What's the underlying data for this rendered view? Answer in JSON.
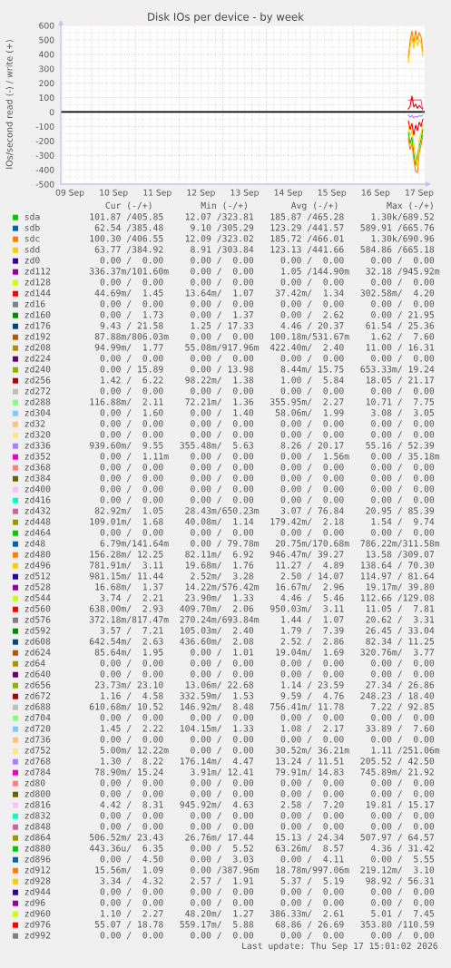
{
  "chart_data": {
    "type": "line",
    "title": "Disk IOs per device - by week",
    "ylabel": "IOs/second read (-) / write (+)",
    "x": [
      "2026-09-17T06:00",
      "2026-09-17T07:00",
      "2026-09-17T08:00",
      "2026-09-17T09:00",
      "2026-09-17T10:00",
      "2026-09-17T11:00",
      "2026-09-17T12:00",
      "2026-09-17T13:00",
      "2026-09-17T14:00"
    ],
    "xlim": [
      "2026-09-09T07:00",
      "2026-09-17T15:00"
    ],
    "xticks": [
      {
        "value": "2026-09-09T12:00",
        "label": "09 Sep"
      },
      {
        "value": "2026-09-10",
        "label": null
      },
      {
        "value": "2026-09-10T12:00",
        "label": "10 Sep"
      },
      {
        "value": "2026-09-11",
        "label": null
      },
      {
        "value": "2026-09-11T12:00",
        "label": "11 Sep"
      },
      {
        "value": "2026-09-12",
        "label": null
      },
      {
        "value": "2026-09-12T12:00",
        "label": "12 Sep"
      },
      {
        "value": "2026-09-13",
        "label": null
      },
      {
        "value": "2026-09-13T12:00",
        "label": "13 Sep"
      },
      {
        "value": "2026-09-14",
        "label": null
      },
      {
        "value": "2026-09-14T12:00",
        "label": "14 Sep"
      },
      {
        "value": "2026-09-15",
        "label": null
      },
      {
        "value": "2026-09-15T12:00",
        "label": "15 Sep"
      },
      {
        "value": "2026-09-16",
        "label": null
      },
      {
        "value": "2026-09-16T12:00",
        "label": "16 Sep"
      },
      {
        "value": "2026-09-17",
        "label": null
      },
      {
        "value": "2026-09-17T12:00",
        "label": "17 Sep"
      }
    ],
    "ylim": [
      -500,
      600
    ],
    "yticks": [
      -500,
      -400,
      -300,
      -200,
      -100,
      0,
      100,
      200,
      300,
      400,
      500,
      600
    ],
    "grid": true,
    "legend": "bottom",
    "ref_lines": [
      {
        "axis": "y",
        "value": 0,
        "color": "#000000"
      }
    ],
    "annotations": [
      "   Cur (-/+)         Min (-/+)        Avg (-/+)         Max (-/+)",
      "101.87 /405.85    12.07 /323.81   185.87 /465.28     1.30k/689.52",
      " 62.54 /385.48     9.10 /305.29   123.29 /441.57   589.91 /665.76",
      "100.30 /406.55    12.09 /323.02   185.72 /466.01     1.30k/690.96",
      " 63.77 /384.92     8.91 /303.84   123.13 /441.66   584.86 /665.18",
      "  0.00 /  0.00     0.00 /  0.00     0.00 /  0.00     0.00 /  0.00",
      "336.37m/101.60m    0.00 /  0.00     1.05 /144.90m   32.18 /945.92m",
      "  0.00 /  0.00     0.00 /  0.00     0.00 /  0.00     0.00 /  0.00",
      " 44.69m/  1.45    13.64m/  1.07    37.42m/  1.34   302.58m/  4.20",
      "  0.00 /  0.00     0.00 /  0.00     0.00 /  0.00     0.00 /  0.00",
      "  0.00 /  1.73     0.00 /  1.37     0.00 /  2.62     0.00 / 21.95",
      "  9.43 / 21.58     1.25 / 17.33     4.46 / 20.37    61.54 / 25.36",
      " 87.88m/806.03m    0.00 /  0.00   100.18m/531.67m    1.62 /  7.60",
      " 94.99m/  1.77    55.08m/917.96m  422.40m/  2.40    11.00 / 16.31",
      "  0.00 /  0.00     0.00 /  0.00     0.00 /  0.00     0.00 /  0.00",
      "  0.00 / 15.89     0.00 / 13.98     8.44m/ 15.75   653.33m/ 19.24",
      "  1.42 /  6.22    98.22m/  1.38     1.00 /  5.84    18.05 / 21.17",
      "  0.00 /  0.00     0.00 /  0.00     0.00 /  0.00     0.00 /  0.00",
      "116.88m/  2.11    72.21m/  1.36   355.95m/  2.27    10.71 /  7.75",
      "  0.00 /  1.60     0.00 /  1.40    58.06m/  1.99     3.08 /  3.05",
      "  0.00 /  0.00     0.00 /  0.00     0.00 /  0.00     0.00 /  0.00",
      "  0.00 /  0.00     0.00 /  0.00     0.00 /  0.00     0.00 /  0.00",
      "939.60m/  9.55   355.48m/  5.63     8.26 / 20.17    55.16 / 52.39",
      "  0.00 /  1.11m    0.00 /  0.00     0.00 /  1.56m    0.00 / 35.18m",
      "  0.00 /  0.00     0.00 /  0.00     0.00 /  0.00     0.00 /  0.00",
      "  0.00 /  0.00     0.00 /  0.00     0.00 /  0.00     0.00 /  0.00",
      "  0.00 /  0.00     0.00 /  0.00     0.00 /  0.00     0.00 /  0.00",
      "  0.00 /  0.00     0.00 /  0.00     0.00 /  0.00     0.00 /  0.00",
      " 82.92m/  1.05    28.43m/650.23m    3.07 / 76.84    20.95 / 85.39",
      "109.01m/  1.68    40.08m/  1.14   179.42m/  2.18     1.54 /  9.74",
      "  0.00 /  0.00     0.00 /  0.00     0.00 /  0.00     0.00 /  0.00",
      "  6.79m/141.64m    0.00 / 79.78m   20.75m/170.68m  786.22m/311.58m",
      "156.28m/ 12.25    82.11m/  6.92   946.47m/ 39.27    13.58 /309.07",
      "781.91m/  3.11    19.68m/  1.76    11.27 /  4.89   138.64 / 70.30",
      "981.15m/ 11.44     2.52m/  3.28     2.50 / 14.07   114.97 / 81.64",
      " 16.68m/  1.37    14.22m/576.42m   16.67m/  2.96    19.17m/ 39.80",
      "  3.74 /  2.21    23.90m/  1.33     4.46 /  5.46   112.66 /129.08",
      "638.00m/  2.93   409.70m/  2.06   950.03m/  3.11    11.05 /  7.81",
      "372.18m/817.47m  270.24m/693.84m    1.44 /  1.07    20.62 /  3.31",
      "  3.57 /  7.21   105.03m/  2.40     1.79 /  7.39    26.45 / 33.04",
      "642.54m/  2.63   436.60m/  2.08     2.52 /  2.86    82.34 / 11.25",
      " 85.64m/  1.95     0.00 /  1.01    19.04m/  1.69   320.76m/  3.77",
      "  0.00 /  0.00     0.00 /  0.00     0.00 /  0.00     0.00 /  0.00",
      "  0.00 /  0.00     0.00 /  0.00     0.00 /  0.00     0.00 /  0.00",
      " 23.73m/ 23.10    13.06m/ 22.68     1.14 / 23.59    27.34 / 26.86",
      "  1.16 /  4.58   332.59m/  1.53     9.59 /  4.76   248.23 / 18.40",
      "610.68m/ 10.52   146.92m/  8.48   756.41m/ 11.78     7.22 / 92.85",
      "  0.00 /  0.00     0.00 /  0.00     0.00 /  0.00     0.00 /  0.00",
      "  1.45 /  2.22   104.15m/  1.33     1.08 /  2.17    33.89 /  7.60",
      "  0.00 /  0.00     0.00 /  0.00     0.00 /  0.00     0.00 /  0.00",
      "  5.00m/ 12.22m    0.00 /  0.00    30.52m/ 36.21m    1.11 /251.06m",
      "  1.30 /  8.22   176.14m/  4.47    13.24 / 11.51   205.52 / 42.50",
      " 78.90m/ 15.24     3.91m/ 12.41    79.91m/ 14.83   745.89m/ 21.92",
      "  0.00 /  0.00     0.00 /  0.00     0.00 /  0.00     0.00 /  0.00",
      "  0.00 /  0.00     0.00 /  0.00     0.00 /  0.00     0.00 /  0.00",
      "  4.42 /  8.31   945.92m/  4.63     2.58 /  7.20    19.81 / 15.17",
      "  0.00 /  0.00     0.00 /  0.00     0.00 /  0.00     0.00 /  0.00",
      "  0.00 /  0.00     0.00 /  0.00     0.00 /  0.00     0.00 /  0.00",
      "506.52m/ 23.43    26.76m/ 17.44    15.13 / 24.34   507.97 / 64.57",
      "443.36u/  6.35     0.00 /  5.52    63.26m/  8.57     4.36 / 31.42",
      "  0.00 /  4.50     0.00 /  3.03     0.00 /  4.11     0.00 /  5.55",
      " 15.56m/  1.09     0.00 /387.96m   18.78m/997.06m  219.12m/  3.10",
      "  3.34 /  4.32     2.57 /  1.91     5.37 /  5.19    98.92 / 56.31",
      "  0.00 /  0.00     0.00 /  0.00     0.00 /  0.00     0.00 /  0.00",
      "  0.00 /  0.00     0.00 /  0.00     0.00 /  0.00     0.00 /  0.00",
      "  1.10 /  2.27    48.20m/  1.27   386.33m/  2.61     5.01 /  7.45",
      " 55.07 / 18.78   559.17m/  5.88    68.86 / 26.69   353.80 /110.59",
      "  0.00 /  0.00     0.00 /  0.00     0.00 /  0.00     0.00 /  0.00",
      "Last update: Thu Sep 17 15:01:02 2026"
    ],
    "series": [
      {
        "name": "sda",
        "color": "#00cc00",
        "values": [
          null,
          null,
          null,
          null,
          null,
          null,
          null,
          null,
          null
        ]
      },
      {
        "color": "#00cc00",
        "values": [
          -140,
          -220,
          -175,
          -290,
          -370,
          -300,
          -240,
          -190,
          -120
        ]
      },
      {
        "name": "sdb",
        "color": "#0066b3",
        "values": [
          null,
          null,
          null,
          null,
          null,
          null,
          null,
          null,
          null
        ]
      },
      {
        "name": "sdc",
        "color": "#ff8000",
        "values": [
          380,
          495,
          560,
          480,
          565,
          500,
          550,
          520,
          420
        ]
      },
      {
        "color": "#ff8000",
        "values": [
          -180,
          -260,
          -215,
          -330,
          -410,
          -420,
          -280,
          -230,
          -160
        ]
      },
      {
        "name": "sdd",
        "color": "#ffcc00",
        "values": [
          340,
          450,
          515,
          440,
          525,
          460,
          505,
          475,
          385
        ]
      },
      {
        "color": "#ffcc00",
        "values": [
          -100,
          -160,
          -130,
          -220,
          -320,
          -380,
          -190,
          -150,
          -85
        ]
      },
      {
        "name": "zd0",
        "color": "#330099",
        "values": [
          null,
          null,
          null,
          null,
          null,
          null,
          null,
          null,
          null
        ]
      },
      {
        "name": "zd112",
        "color": "#990099",
        "values": [
          null,
          null,
          null,
          null,
          null,
          null,
          null,
          null,
          null
        ]
      },
      {
        "name": "zd128",
        "color": "#ccff00",
        "values": [
          null,
          null,
          null,
          null,
          null,
          null,
          null,
          null,
          null
        ]
      },
      {
        "name": "zd144",
        "color": "#ff0000",
        "values": [
          null,
          null,
          null,
          null,
          null,
          null,
          null,
          null,
          null
        ]
      },
      {
        "name": "zd16",
        "color": "#808080",
        "values": [
          null,
          null,
          null,
          null,
          null,
          null,
          null,
          null,
          null
        ]
      },
      {
        "name": "zd160",
        "color": "#008f00",
        "values": [
          null,
          null,
          null,
          null,
          null,
          null,
          null,
          null,
          null
        ]
      },
      {
        "name": "zd176",
        "color": "#00487d",
        "values": [
          null,
          null,
          null,
          null,
          null,
          null,
          null,
          null,
          null
        ]
      },
      {
        "name": "zd192",
        "color": "#b35a00",
        "values": [
          null,
          null,
          null,
          null,
          null,
          null,
          null,
          null,
          null
        ]
      },
      {
        "name": "zd208",
        "color": "#b38f00",
        "values": [
          null,
          null,
          null,
          null,
          null,
          null,
          null,
          null,
          null
        ]
      },
      {
        "name": "zd224",
        "color": "#6b006b",
        "values": [
          null,
          null,
          null,
          null,
          null,
          null,
          null,
          null,
          null
        ]
      },
      {
        "name": "zd240",
        "color": "#8fb300",
        "values": [
          null,
          null,
          null,
          null,
          null,
          null,
          null,
          null,
          null
        ]
      },
      {
        "name": "zd256",
        "color": "#b30000",
        "values": [
          null,
          null,
          null,
          null,
          null,
          null,
          null,
          null,
          null
        ]
      },
      {
        "name": "zd272",
        "color": "#bebebe",
        "values": [
          null,
          null,
          null,
          null,
          null,
          null,
          null,
          null,
          null
        ]
      },
      {
        "name": "zd288",
        "color": "#80ff80",
        "values": [
          null,
          null,
          null,
          null,
          null,
          null,
          null,
          null,
          null
        ]
      },
      {
        "name": "zd304",
        "color": "#80c9ff",
        "values": [
          null,
          null,
          null,
          null,
          null,
          null,
          null,
          null,
          null
        ]
      },
      {
        "name": "zd32",
        "color": "#ffc080",
        "values": [
          null,
          null,
          null,
          null,
          null,
          null,
          null,
          null,
          null
        ]
      },
      {
        "name": "zd320",
        "color": "#ffe680",
        "values": [
          null,
          null,
          null,
          null,
          null,
          null,
          null,
          null,
          null
        ]
      },
      {
        "name": "zd336",
        "color": "#aa80ff",
        "values": [
          null,
          null,
          null,
          null,
          null,
          null,
          null,
          null,
          null
        ]
      },
      {
        "name": "zd352",
        "color": "#ee00cc",
        "values": [
          null,
          null,
          null,
          null,
          null,
          null,
          null,
          null,
          null
        ]
      },
      {
        "name": "zd368",
        "color": "#ff8080",
        "values": [
          null,
          null,
          null,
          null,
          null,
          null,
          null,
          null,
          null
        ]
      },
      {
        "name": "zd384",
        "color": "#666600",
        "values": [
          null,
          null,
          null,
          null,
          null,
          null,
          null,
          null,
          null
        ]
      },
      {
        "name": "zd400",
        "color": "#ffbfff",
        "values": [
          null,
          null,
          null,
          null,
          null,
          null,
          null,
          null,
          null
        ]
      },
      {
        "name": "zd416",
        "color": "#00ffcc",
        "values": [
          null,
          null,
          null,
          null,
          null,
          null,
          null,
          null,
          null
        ]
      },
      {
        "name": "zd432",
        "color": "#cc6699",
        "values": [
          80,
          85,
          78,
          85,
          83,
          85,
          84,
          82,
          1
        ]
      },
      {
        "name": "zd448",
        "color": "#999900",
        "values": [
          null,
          null,
          null,
          null,
          null,
          null,
          null,
          null,
          null
        ]
      },
      {
        "name": "zd464",
        "color": "#00cc00",
        "values": [
          null,
          null,
          null,
          null,
          null,
          null,
          null,
          null,
          null
        ]
      },
      {
        "name": "zd48",
        "color": "#0066b3",
        "values": [
          null,
          null,
          null,
          null,
          null,
          null,
          null,
          null,
          null
        ]
      },
      {
        "name": "zd480",
        "color": "#ff8000",
        "values": [
          null,
          null,
          null,
          null,
          null,
          null,
          null,
          null,
          null
        ]
      },
      {
        "name": "zd496",
        "color": "#ffcc00",
        "values": [
          null,
          null,
          null,
          null,
          null,
          null,
          null,
          null,
          null
        ]
      },
      {
        "name": "zd512",
        "color": "#330099",
        "values": [
          null,
          null,
          null,
          null,
          null,
          null,
          null,
          null,
          null
        ]
      },
      {
        "name": "zd528",
        "color": "#990099",
        "values": [
          null,
          null,
          null,
          null,
          null,
          null,
          null,
          null,
          null
        ]
      },
      {
        "name": "zd544",
        "color": "#ccff00",
        "values": [
          null,
          null,
          null,
          null,
          null,
          null,
          null,
          null,
          null
        ]
      },
      {
        "name": "zd560",
        "color": "#ff0000",
        "values": [
          null,
          null,
          null,
          null,
          null,
          null,
          null,
          null,
          null
        ]
      },
      {
        "name": "zd576",
        "color": "#808080",
        "values": [
          null,
          null,
          null,
          null,
          null,
          null,
          null,
          null,
          null
        ]
      },
      {
        "name": "zd592",
        "color": "#008f00",
        "values": [
          null,
          null,
          null,
          null,
          null,
          null,
          null,
          null,
          null
        ]
      },
      {
        "name": "zd608",
        "color": "#00487d",
        "values": [
          null,
          null,
          null,
          null,
          null,
          null,
          null,
          null,
          null
        ]
      },
      {
        "name": "zd624",
        "color": "#b35a00",
        "values": [
          null,
          null,
          null,
          null,
          null,
          null,
          null,
          null,
          null
        ]
      },
      {
        "name": "zd64",
        "color": "#b38f00",
        "values": [
          null,
          null,
          null,
          null,
          null,
          null,
          null,
          null,
          null
        ]
      },
      {
        "name": "zd640",
        "color": "#6b006b",
        "values": [
          null,
          null,
          null,
          null,
          null,
          null,
          null,
          null,
          null
        ]
      },
      {
        "name": "zd656",
        "color": "#8fb300",
        "values": [
          null,
          null,
          null,
          null,
          null,
          null,
          null,
          null,
          null
        ]
      },
      {
        "name": "zd672",
        "color": "#b30000",
        "values": [
          null,
          null,
          null,
          null,
          null,
          null,
          null,
          null,
          null
        ]
      },
      {
        "name": "zd688",
        "color": "#bebebe",
        "values": [
          null,
          null,
          null,
          null,
          null,
          null,
          null,
          null,
          null
        ]
      },
      {
        "name": "zd704",
        "color": "#80ff80",
        "values": [
          null,
          null,
          null,
          null,
          null,
          null,
          null,
          null,
          null
        ]
      },
      {
        "name": "zd720",
        "color": "#80c9ff",
        "values": [
          null,
          null,
          null,
          null,
          null,
          null,
          null,
          null,
          null
        ]
      },
      {
        "name": "zd736",
        "color": "#ffc080",
        "values": [
          null,
          null,
          null,
          null,
          null,
          null,
          null,
          null,
          null
        ]
      },
      {
        "name": "zd752",
        "color": "#ffe680",
        "values": [
          null,
          null,
          null,
          null,
          null,
          null,
          null,
          null,
          null
        ]
      },
      {
        "name": "zd768",
        "color": "#aa80ff",
        "values": [
          null,
          null,
          null,
          null,
          null,
          null,
          null,
          null,
          null
        ]
      },
      {
        "color": "#aa80ff",
        "values": [
          -20,
          -35,
          -25,
          -40,
          -30,
          -35,
          -25,
          -30,
          -20
        ]
      },
      {
        "name": "zd784",
        "color": "#ee00cc",
        "values": [
          null,
          null,
          null,
          null,
          null,
          null,
          null,
          null,
          null
        ]
      },
      {
        "name": "zd80",
        "color": "#ff8080",
        "values": [
          null,
          null,
          null,
          null,
          null,
          null,
          null,
          null,
          null
        ]
      },
      {
        "name": "zd800",
        "color": "#666600",
        "values": [
          null,
          null,
          null,
          null,
          null,
          null,
          null,
          null,
          null
        ]
      },
      {
        "name": "zd816",
        "color": "#ffbfff",
        "values": [
          null,
          null,
          null,
          null,
          null,
          null,
          null,
          null,
          null
        ]
      },
      {
        "name": "zd832",
        "color": "#00ffcc",
        "values": [
          null,
          null,
          null,
          null,
          null,
          null,
          null,
          null,
          null
        ]
      },
      {
        "name": "zd848",
        "color": "#cc6699",
        "values": [
          null,
          null,
          null,
          null,
          null,
          null,
          null,
          null,
          null
        ]
      },
      {
        "name": "zd864",
        "color": "#999900",
        "values": [
          null,
          null,
          null,
          null,
          null,
          null,
          null,
          null,
          null
        ]
      },
      {
        "name": "zd880",
        "color": "#00cc00",
        "values": [
          null,
          null,
          null,
          null,
          null,
          null,
          null,
          null,
          null
        ]
      },
      {
        "name": "zd896",
        "color": "#0066b3",
        "values": [
          null,
          null,
          null,
          null,
          null,
          null,
          null,
          null,
          null
        ]
      },
      {
        "name": "zd912",
        "color": "#ff8000",
        "values": [
          null,
          null,
          null,
          null,
          null,
          null,
          null,
          null,
          null
        ]
      },
      {
        "name": "zd928",
        "color": "#ffcc00",
        "values": [
          null,
          null,
          null,
          null,
          null,
          null,
          null,
          null,
          null
        ]
      },
      {
        "name": "zd944",
        "color": "#330099",
        "values": [
          null,
          null,
          null,
          null,
          null,
          null,
          null,
          null,
          null
        ]
      },
      {
        "name": "zd96",
        "color": "#990099",
        "values": [
          null,
          null,
          null,
          null,
          null,
          null,
          null,
          null,
          null
        ]
      },
      {
        "name": "zd960",
        "color": "#ccff00",
        "values": [
          null,
          null,
          null,
          null,
          null,
          null,
          null,
          null,
          null
        ]
      },
      {
        "name": "zd976",
        "color": "#ff0000",
        "values": [
          20,
          40,
          110,
          35,
          55,
          25,
          45,
          30,
          25
        ]
      },
      {
        "color": "#ff0000",
        "values": [
          -60,
          -120,
          -80,
          -160,
          -90,
          -130,
          -70,
          -100,
          -50
        ]
      },
      {
        "name": "zd992",
        "color": "#808080",
        "values": [
          null,
          null,
          null,
          null,
          null,
          null,
          null,
          null,
          null
        ]
      }
    ]
  }
}
